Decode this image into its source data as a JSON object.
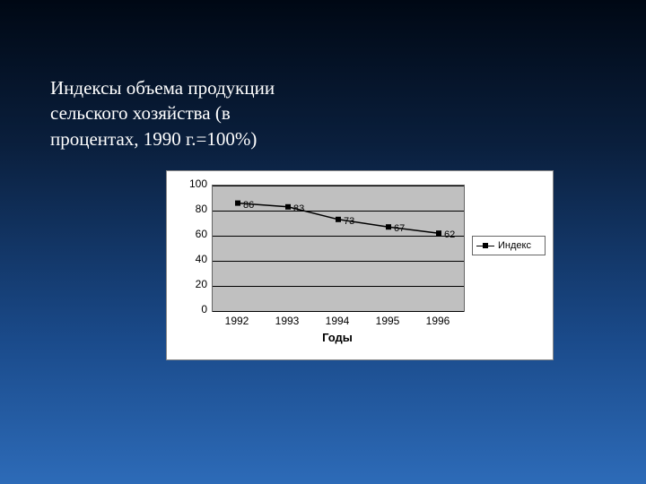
{
  "slide": {
    "title": "Индексы объема продукции сельского хозяйства (в процентах, 1990 г.=100%)",
    "background_gradient": [
      "#000814",
      "#0a1f3d",
      "#1a4a8a",
      "#2d6bb8"
    ],
    "title_color": "#ffffff",
    "title_fontsize_pt": 16,
    "title_font_family": "Times New Roman"
  },
  "chart": {
    "type": "line",
    "panel_bg": "#ffffff",
    "plot_bg": "#c0c0c0",
    "border_color": "#666666",
    "grid_color": "#000000",
    "xaxis_title": "Годы",
    "xaxis_title_fontweight": "bold",
    "xaxis_title_fontsize_pt": 10,
    "tick_fontsize_pt": 9,
    "ylim": [
      0,
      100
    ],
    "ytick_step": 20,
    "yticks": [
      0,
      20,
      40,
      60,
      80,
      100
    ],
    "categories": [
      "1992",
      "1993",
      "1994",
      "1995",
      "1996"
    ],
    "series": {
      "name": "Индекс",
      "values": [
        86,
        83,
        73,
        67,
        62
      ],
      "line_color": "#000000",
      "line_width": 1.5,
      "marker": "square",
      "marker_color": "#000000",
      "marker_size": 6,
      "show_labels": true,
      "label_fontsize_pt": 8
    },
    "legend": {
      "position": "right-middle",
      "bg": "#ffffff",
      "border": "#666666",
      "label": "Индекс"
    }
  }
}
